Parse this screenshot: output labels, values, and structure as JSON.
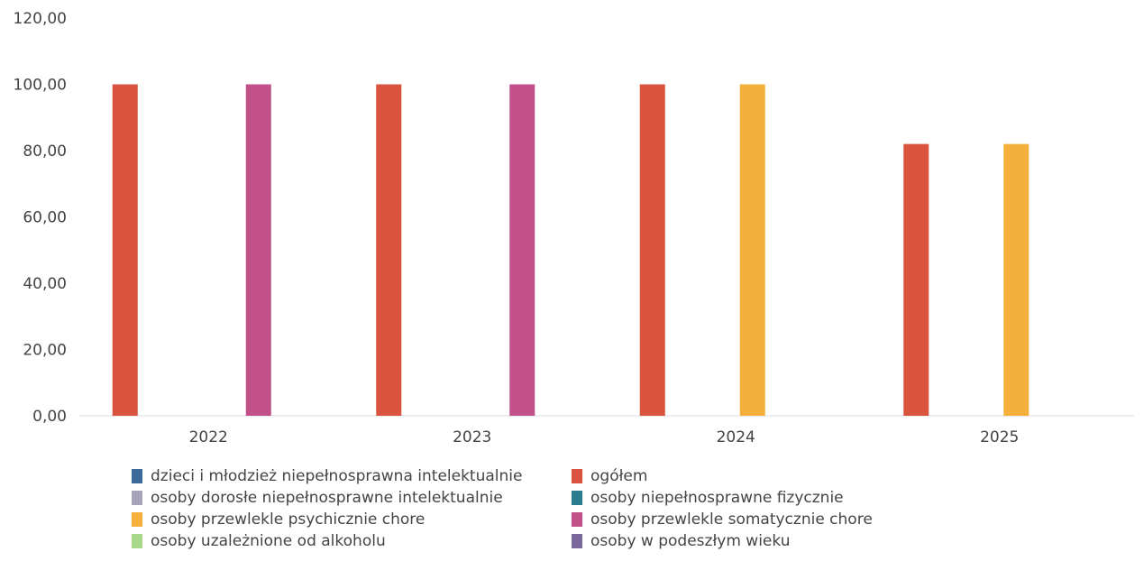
{
  "chart_data": {
    "type": "bar",
    "categories": [
      "2022",
      "2023",
      "2024",
      "2025"
    ],
    "ylim": [
      0,
      120
    ],
    "yticks": [
      "0,00",
      "20,00",
      "40,00",
      "60,00",
      "80,00",
      "100,00",
      "120,00"
    ],
    "grid": false,
    "legend_position": "bottom",
    "series": [
      {
        "name": "dzieci i młodzież niepełnosprawna intelektualnie",
        "color": "#3a6b9a",
        "values": [
          0,
          0,
          0,
          0
        ]
      },
      {
        "name": "ogółem",
        "color": "#d9533f",
        "values": [
          100,
          100,
          100,
          82
        ]
      },
      {
        "name": "osoby dorosłe niepełnosprawne intelektualnie",
        "color": "#a7a3b8",
        "values": [
          0,
          0,
          0,
          0
        ]
      },
      {
        "name": "osoby niepełnosprawne fizycznie",
        "color": "#2a7c8f",
        "values": [
          0,
          0,
          0,
          0
        ]
      },
      {
        "name": "osoby przewlekle psychicznie chore",
        "color": "#f5b03c",
        "values": [
          0,
          0,
          100,
          82
        ]
      },
      {
        "name": "osoby przewlekle somatycznie chore",
        "color": "#c2518a",
        "values": [
          100,
          100,
          0,
          0
        ]
      },
      {
        "name": "osoby uzależnione od alkoholu",
        "color": "#a8d98a",
        "values": [
          0,
          0,
          0,
          0
        ]
      },
      {
        "name": "osoby w podeszłym wieku",
        "color": "#7a6a9c",
        "values": [
          0,
          0,
          0,
          0
        ]
      }
    ]
  }
}
